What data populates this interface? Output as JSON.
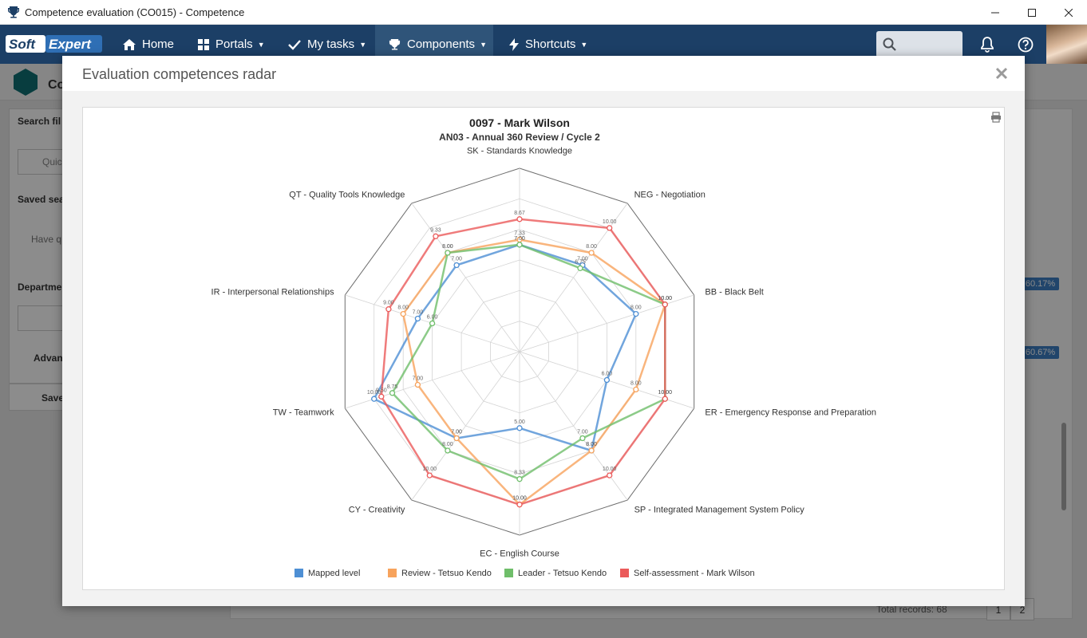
{
  "window": {
    "title": "Competence evaluation (CO015) - Competence"
  },
  "nav": {
    "logo_left": "Soft",
    "logo_right": "Expert",
    "items": [
      {
        "label": "Home",
        "icon": "home-icon"
      },
      {
        "label": "Portals",
        "icon": "grid-icon"
      },
      {
        "label": "My tasks",
        "icon": "check-icon"
      },
      {
        "label": "Components",
        "icon": "trophy-icon"
      },
      {
        "label": "Shortcuts",
        "icon": "bolt-icon"
      }
    ],
    "active": "Components"
  },
  "background_page": {
    "title_fragment": "Co",
    "search_filter_label": "Search fil",
    "quick_search_placeholder": "Quick",
    "saved_searches_label": "Saved sea",
    "saved_searches_hint": "Have q",
    "department_label": "Departme",
    "advanced_label": "Advan",
    "save_label": "Save",
    "badges": [
      "60.17%",
      "60.67%"
    ],
    "total_records": "Total records: 68",
    "pages": [
      "1",
      "2"
    ]
  },
  "modal": {
    "title": "Evaluation competences radar"
  },
  "colors": {
    "mapped": "#4e8fd4",
    "review": "#f7a35c",
    "leader": "#6fbe6a",
    "self": "#eb5a5a",
    "nav_bg": "#1c3f66"
  },
  "chart_data": {
    "type": "radar",
    "title": "0097 - Mark Wilson",
    "subtitle": "AN03 - Annual 360 Review / Cycle 2",
    "categories": [
      "SK - Standards Knowledge",
      "NEG - Negotiation",
      "BB - Black Belt",
      "ER - Emergency Response and Preparation",
      "SP - Integrated Management System Policy",
      "EC - English Course",
      "CY - Creativity",
      "TW - Teamwork",
      "IR - Interpersonal Relationships",
      "QT - Quality Tools Knowledge"
    ],
    "ylim": [
      0,
      12
    ],
    "series": [
      {
        "name": "Mapped level",
        "color": "#4e8fd4",
        "values": [
          7.0,
          7.0,
          8.0,
          6.0,
          8.0,
          5.0,
          7.0,
          10.0,
          7.0,
          7.0
        ]
      },
      {
        "name": "Review - Tetsuo Kendo",
        "color": "#f7a35c",
        "values": [
          7.33,
          8.0,
          10.0,
          8.0,
          8.0,
          10.0,
          7.0,
          7.0,
          8.0,
          8.0
        ]
      },
      {
        "name": "Leader - Tetsuo Kendo",
        "color": "#6fbe6a",
        "values": [
          7.0,
          6.75,
          10.0,
          10.0,
          7.0,
          8.33,
          8.0,
          8.75,
          6.0,
          8.0
        ]
      },
      {
        "name": "Self-assessment - Mark Wilson",
        "color": "#eb5a5a",
        "values": [
          8.67,
          10.0,
          10.0,
          10.0,
          10.0,
          10.0,
          10.0,
          9.5,
          9.0,
          9.33
        ]
      }
    ],
    "legend_position": "bottom",
    "grid": true
  }
}
